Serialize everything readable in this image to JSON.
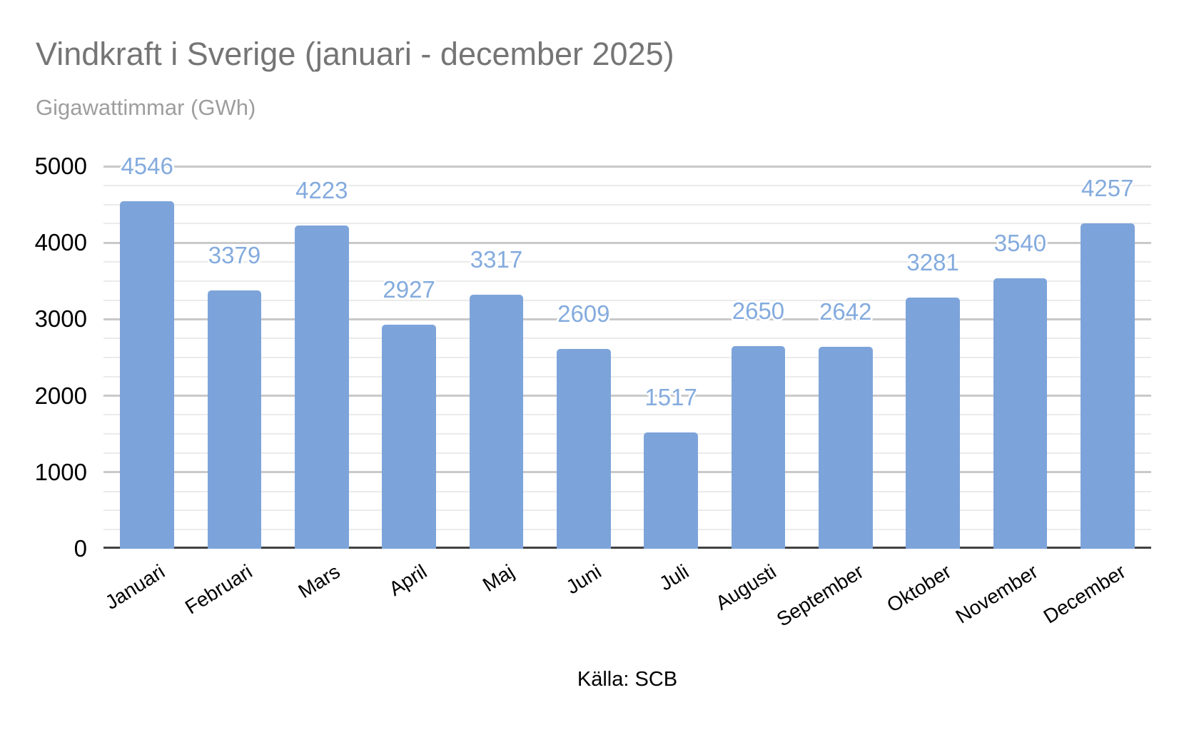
{
  "chart_data": {
    "type": "bar",
    "title": "Vindkraft i Sverige (januari - december 2025)",
    "subtitle": "Gigawattimmar (GWh)",
    "categories": [
      "Januari",
      "Februari",
      "Mars",
      "April",
      "Maj",
      "Juni",
      "Juli",
      "Augusti",
      "September",
      "Oktober",
      "November",
      "December"
    ],
    "values": [
      4546,
      3379,
      4223,
      2927,
      3317,
      2609,
      1517,
      2650,
      2642,
      3281,
      3540,
      4257
    ],
    "xlabel": "Källa: SCB",
    "ylabel": "Gigawattimmar (GWh)",
    "ylim": [
      0,
      5000
    ],
    "y_major_step": 1000,
    "y_minor_step": 250,
    "grid": true,
    "legend_position": "none",
    "bar_color": "#7da4da",
    "value_label_color": "#84abde",
    "title_color": "#757575",
    "subtitle_color": "#9e9e9e"
  }
}
